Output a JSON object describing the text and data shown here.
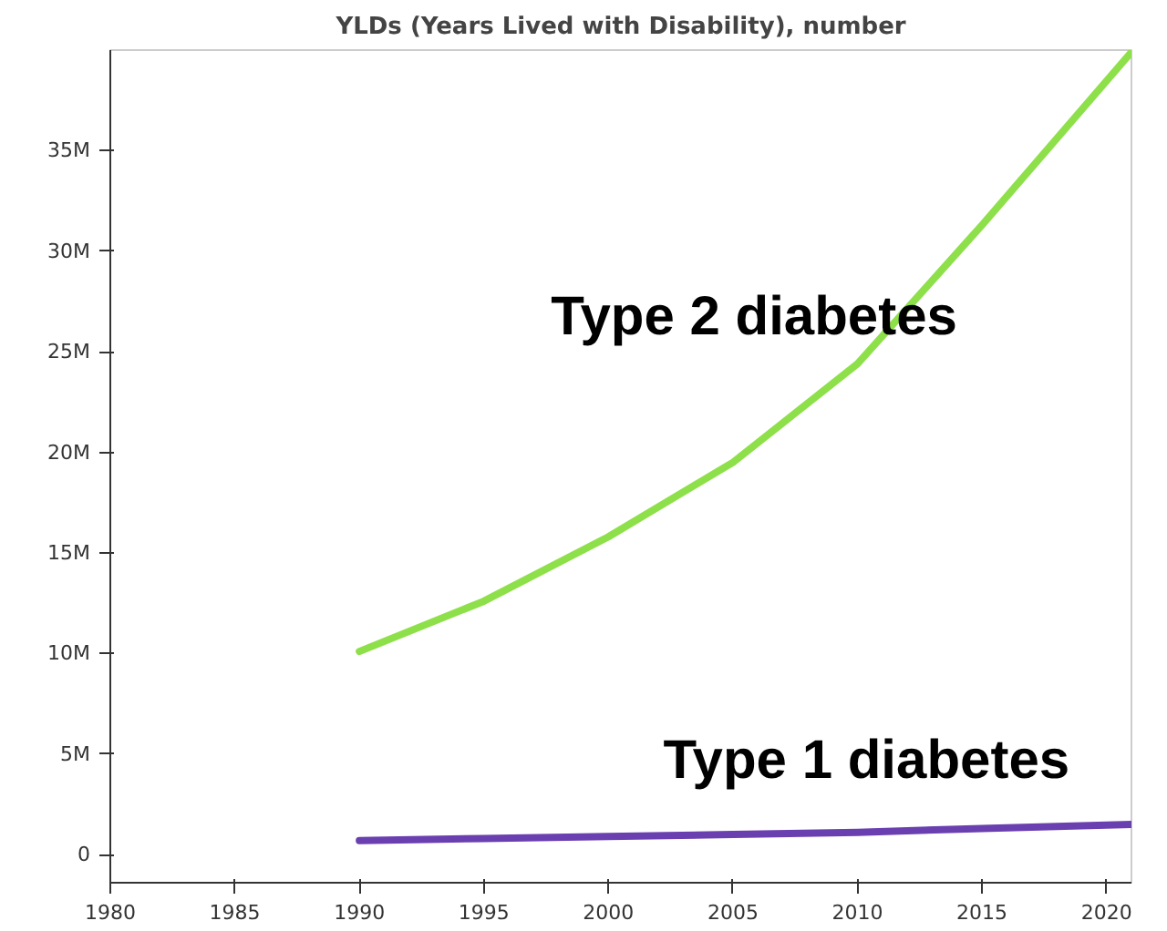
{
  "chart_data": {
    "type": "line",
    "title": "YLDs (Years Lived with Disability), number",
    "xlim": [
      1980,
      2021
    ],
    "xticks": [
      1980,
      1985,
      1990,
      1995,
      2000,
      2005,
      2010,
      2015,
      2020
    ],
    "ylim": [
      -1400000,
      40000000
    ],
    "yticks": [
      {
        "value": 0,
        "label": "0"
      },
      {
        "value": 5000000,
        "label": "5M"
      },
      {
        "value": 10000000,
        "label": "10M"
      },
      {
        "value": 15000000,
        "label": "15M"
      },
      {
        "value": 20000000,
        "label": "20M"
      },
      {
        "value": 25000000,
        "label": "25M"
      },
      {
        "value": 30000000,
        "label": "30M"
      },
      {
        "value": 35000000,
        "label": "35M"
      }
    ],
    "grid": false,
    "marker": "none",
    "line_style": "solid",
    "series": [
      {
        "name": "Type 2 diabetes",
        "color": "#8ee04a",
        "x": [
          1990,
          1995,
          2000,
          2005,
          2010,
          2015,
          2021
        ],
        "values": [
          10100000,
          12600000,
          15800000,
          19500000,
          24400000,
          31300000,
          39900000
        ]
      },
      {
        "name": "Type 1 diabetes",
        "color": "#6a3fb0",
        "x": [
          1990,
          1995,
          2000,
          2005,
          2010,
          2015,
          2021
        ],
        "values": [
          700000,
          800000,
          900000,
          1000000,
          1100000,
          1300000,
          1500000
        ]
      }
    ]
  }
}
